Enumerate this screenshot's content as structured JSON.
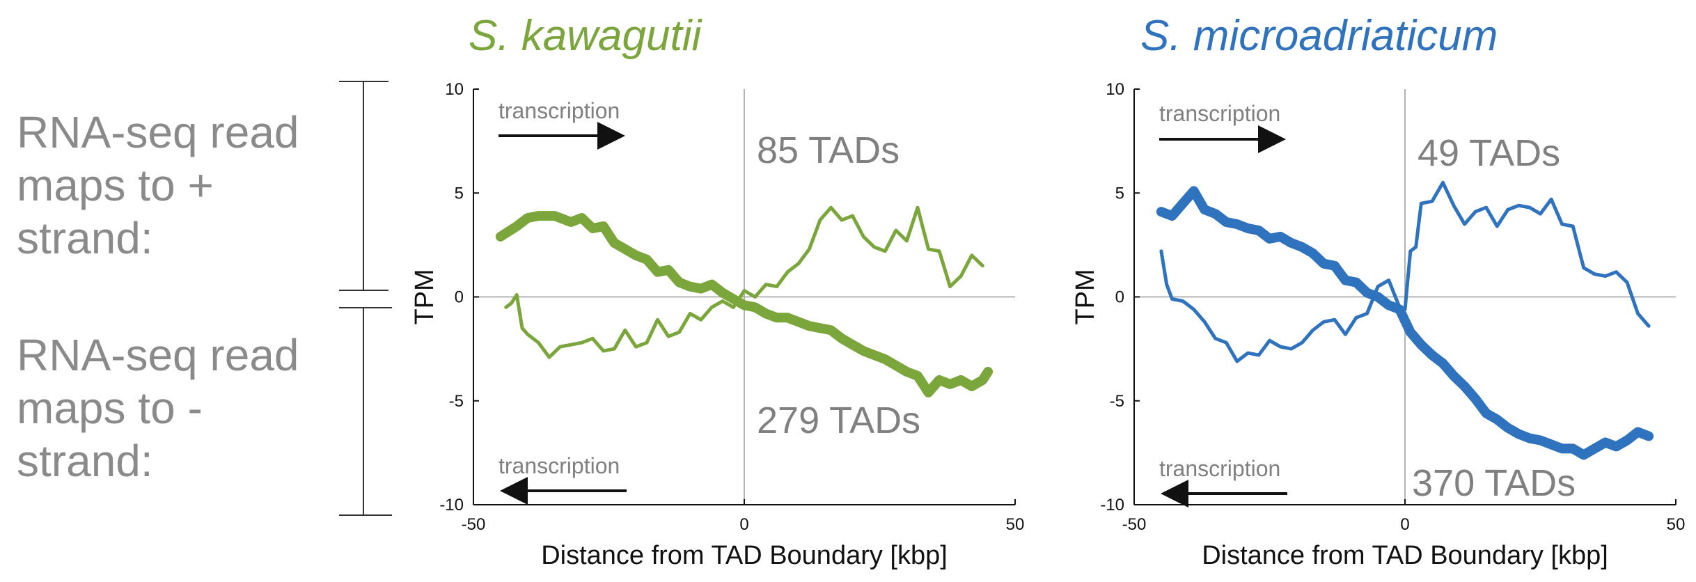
{
  "left_labels": {
    "plus_strand": [
      "RNA-seq read",
      "maps to +",
      "strand:"
    ],
    "minus_strand": [
      "RNA-seq read",
      "maps to -",
      "strand:"
    ]
  },
  "colors": {
    "kawagutii": "#7aa63b",
    "microadriaticum": "#2f73bf",
    "axis": "#111111",
    "text_gray": "#8a8a8a"
  },
  "chart_data": [
    {
      "type": "line",
      "title": "S. kawagutii",
      "xlabel": "Distance from TAD Boundary [kbp]",
      "ylabel": "TPM",
      "xlim": [
        -50,
        50
      ],
      "ylim": [
        -10,
        10
      ],
      "xticks": [
        -50,
        0,
        50
      ],
      "yticks": [
        10,
        5,
        0,
        -5,
        -10
      ],
      "annotations": {
        "plus_count": "85 TADs",
        "minus_count": "279 TADs",
        "transcription_top": "transcription",
        "transcription_bottom": "transcription"
      },
      "series": [
        {
          "name": "plus-strand TADs (thick)",
          "x": [
            -45,
            -42,
            -40,
            -38,
            -35,
            -32,
            -30,
            -28,
            -26,
            -24,
            -22,
            -20,
            -18,
            -16,
            -14,
            -12,
            -10,
            -8,
            -6,
            -4,
            -2,
            0,
            2,
            4,
            6,
            8,
            10,
            12,
            14,
            16,
            18,
            20,
            22,
            24,
            26,
            28,
            30,
            32,
            34,
            36,
            38,
            40,
            42,
            44,
            45
          ],
          "y": [
            2.9,
            3.4,
            3.8,
            3.9,
            3.9,
            3.6,
            3.8,
            3.3,
            3.4,
            2.6,
            2.3,
            2.0,
            1.8,
            1.2,
            1.3,
            0.7,
            0.5,
            0.4,
            0.6,
            0.2,
            -0.1,
            -0.4,
            -0.5,
            -0.8,
            -1.0,
            -1.0,
            -1.2,
            -1.4,
            -1.5,
            -1.6,
            -2.0,
            -2.3,
            -2.6,
            -2.8,
            -3.0,
            -3.3,
            -3.6,
            -3.8,
            -4.6,
            -4.0,
            -4.2,
            -4.0,
            -4.3,
            -4.0,
            -3.6
          ]
        },
        {
          "name": "minus-strand TADs (thin)",
          "x": [
            -44,
            -43,
            -42,
            -41,
            -40,
            -38,
            -36,
            -34,
            -32,
            -30,
            -28,
            -26,
            -24,
            -22,
            -20,
            -18,
            -16,
            -14,
            -12,
            -10,
            -8,
            -6,
            -4,
            -2,
            0,
            2,
            4,
            6,
            8,
            10,
            12,
            14,
            16,
            18,
            20,
            22,
            24,
            26,
            28,
            30,
            32,
            34,
            36,
            38,
            40,
            42,
            44
          ],
          "y": [
            -0.5,
            -0.3,
            0.1,
            -1.5,
            -1.8,
            -2.2,
            -2.9,
            -2.4,
            -2.3,
            -2.2,
            -2.0,
            -2.6,
            -2.5,
            -1.6,
            -2.4,
            -2.2,
            -1.1,
            -1.9,
            -1.7,
            -0.8,
            -1.1,
            -0.5,
            -0.2,
            -0.5,
            0.3,
            0.0,
            0.6,
            0.5,
            1.2,
            1.6,
            2.3,
            3.7,
            4.3,
            3.7,
            3.9,
            2.9,
            2.4,
            2.2,
            3.2,
            2.7,
            4.3,
            2.3,
            2.2,
            0.5,
            1.0,
            2.0,
            1.5
          ]
        }
      ]
    },
    {
      "type": "line",
      "title": "S. microadriaticum",
      "xlabel": "Distance from TAD Boundary [kbp]",
      "ylabel": "TPM",
      "xlim": [
        -50,
        50
      ],
      "ylim": [
        -10,
        10
      ],
      "xticks": [
        -50,
        0,
        50
      ],
      "yticks": [
        10,
        5,
        0,
        -5,
        -10
      ],
      "annotations": {
        "plus_count": "49 TADs",
        "minus_count": "370 TADs",
        "transcription_top": "transcription",
        "transcription_bottom": "transcription"
      },
      "series": [
        {
          "name": "plus-strand TADs (thick)",
          "x": [
            -45,
            -43,
            -41,
            -39,
            -37,
            -35,
            -33,
            -31,
            -29,
            -27,
            -25,
            -23,
            -21,
            -19,
            -17,
            -15,
            -13,
            -11,
            -9,
            -7,
            -5,
            -3,
            -1,
            1,
            3,
            5,
            7,
            9,
            11,
            13,
            15,
            17,
            19,
            21,
            23,
            25,
            27,
            29,
            31,
            33,
            35,
            37,
            39,
            41,
            43,
            45
          ],
          "y": [
            4.1,
            3.9,
            4.5,
            5.1,
            4.2,
            4.0,
            3.6,
            3.5,
            3.3,
            3.2,
            2.8,
            2.9,
            2.6,
            2.4,
            2.1,
            1.6,
            1.5,
            0.8,
            0.7,
            0.2,
            0.0,
            -0.4,
            -0.6,
            -1.7,
            -2.3,
            -2.8,
            -3.2,
            -3.8,
            -4.3,
            -4.9,
            -5.6,
            -5.9,
            -6.3,
            -6.6,
            -6.8,
            -6.9,
            -7.1,
            -7.3,
            -7.3,
            -7.6,
            -7.3,
            -7.0,
            -7.2,
            -6.9,
            -6.5,
            -6.7
          ]
        },
        {
          "name": "minus-strand TADs (thin)",
          "x": [
            -45,
            -44,
            -43,
            -41,
            -39,
            -37,
            -35,
            -33,
            -31,
            -29,
            -27,
            -25,
            -23,
            -21,
            -19,
            -17,
            -15,
            -13,
            -11,
            -9,
            -7,
            -5,
            -3,
            -1,
            0,
            1,
            2,
            3,
            5,
            7,
            9,
            11,
            13,
            15,
            17,
            19,
            21,
            23,
            25,
            27,
            29,
            31,
            33,
            35,
            37,
            39,
            41,
            43,
            45
          ],
          "y": [
            2.2,
            0.6,
            -0.1,
            -0.2,
            -0.6,
            -1.2,
            -2.0,
            -2.2,
            -3.1,
            -2.7,
            -2.8,
            -2.1,
            -2.4,
            -2.5,
            -2.2,
            -1.6,
            -1.2,
            -1.1,
            -1.8,
            -1.0,
            -0.8,
            0.5,
            0.8,
            -0.5,
            -0.6,
            2.2,
            2.4,
            4.5,
            4.6,
            5.5,
            4.4,
            3.5,
            4.1,
            4.3,
            3.4,
            4.2,
            4.4,
            4.3,
            4.0,
            4.7,
            3.5,
            3.4,
            1.4,
            1.1,
            1.0,
            1.2,
            0.7,
            -0.8,
            -1.4
          ]
        }
      ]
    }
  ]
}
